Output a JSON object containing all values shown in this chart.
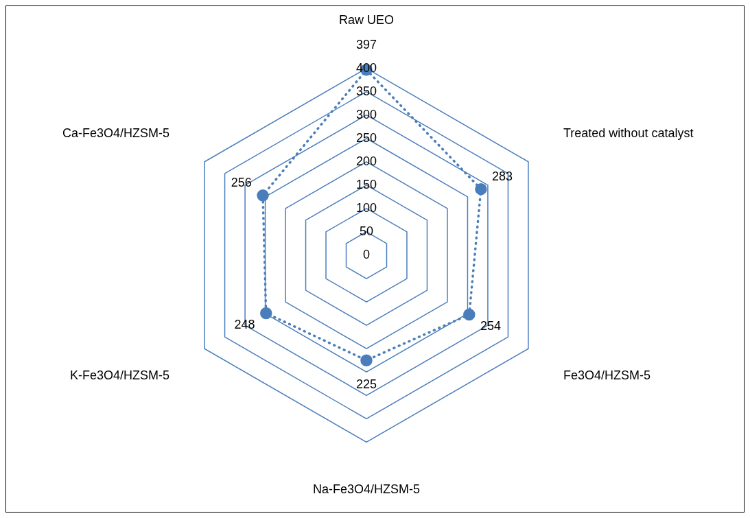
{
  "chart_data": {
    "type": "radar",
    "categories": [
      "Raw UEO",
      "Treated without catalyst",
      "Fe3O4/HZSM-5",
      "Na-Fe3O4/HZSM-5",
      "K-Fe3O4/HZSM-5",
      "Ca-Fe3O4/HZSM-5"
    ],
    "series": [
      {
        "color": "#4a7ebb",
        "values": [
          397,
          283,
          254,
          225,
          248,
          256
        ]
      }
    ],
    "ylim": [
      0,
      400
    ],
    "yticks": [
      0,
      50,
      100,
      150,
      200,
      250,
      300,
      350,
      400
    ],
    "grid": true,
    "legend": false,
    "marker": "circle",
    "line_style": "dotted",
    "data_labels": true
  }
}
